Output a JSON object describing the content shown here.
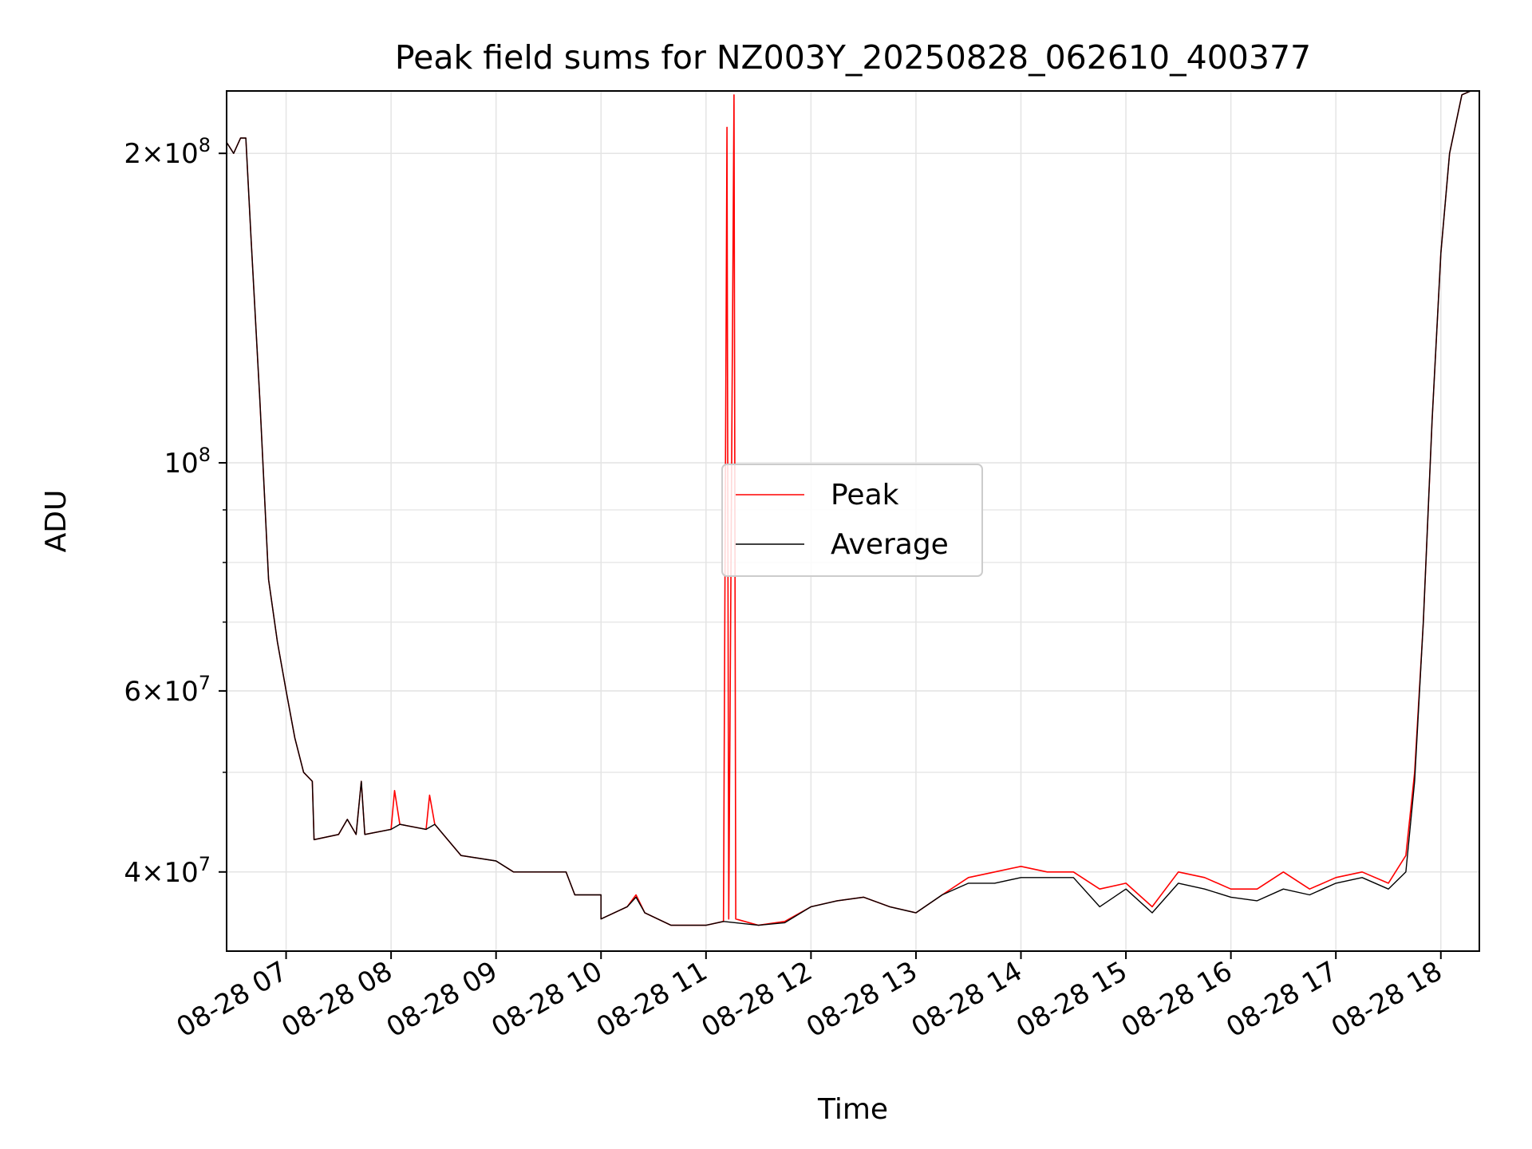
{
  "chart_data": {
    "type": "line",
    "title": "Peak field sums for NZ003Y_20250828_062610_400377",
    "xlabel": "Time",
    "ylabel": "ADU",
    "y_scale": "log",
    "xlim": [
      "2025-08-28 06:26",
      "2025-08-28 18:22"
    ],
    "ylim": [
      33500000,
      230000000
    ],
    "grid": true,
    "legend_placement": "center",
    "x_ticks": [
      "08-28 07",
      "08-28 08",
      "08-28 09",
      "08-28 10",
      "08-28 11",
      "08-28 12",
      "08-28 13",
      "08-28 14",
      "08-28 15",
      "08-28 16",
      "08-28 17",
      "08-28 18"
    ],
    "y_ticks": [
      {
        "value": 40000000,
        "mantissa": "4",
        "exponent": "7"
      },
      {
        "value": 60000000,
        "mantissa": "6",
        "exponent": "7"
      },
      {
        "value": 100000000,
        "mantissa": "",
        "exponent": "8"
      },
      {
        "value": 200000000,
        "mantissa": "2",
        "exponent": "8"
      }
    ],
    "times_unit": "time of day on 2025-08-28",
    "series": [
      {
        "name": "Peak",
        "color": "#ff0000",
        "points": [
          [
            "06:26",
            205000000
          ],
          [
            "06:30",
            200000000
          ],
          [
            "06:34",
            207000000
          ],
          [
            "06:37",
            207000000
          ],
          [
            "06:40",
            165000000
          ],
          [
            "06:45",
            115000000
          ],
          [
            "06:50",
            77000000
          ],
          [
            "06:55",
            67000000
          ],
          [
            "07:00",
            60000000
          ],
          [
            "07:05",
            54000000
          ],
          [
            "07:10",
            50000000
          ],
          [
            "07:15",
            49000000
          ],
          [
            "07:16",
            43000000
          ],
          [
            "07:30",
            43500000
          ],
          [
            "07:35",
            45000000
          ],
          [
            "07:40",
            43500000
          ],
          [
            "07:43",
            49000000
          ],
          [
            "07:45",
            43500000
          ],
          [
            "08:00",
            44000000
          ],
          [
            "08:02",
            48000000
          ],
          [
            "08:05",
            44500000
          ],
          [
            "08:20",
            44000000
          ],
          [
            "08:22",
            47500000
          ],
          [
            "08:25",
            44500000
          ],
          [
            "08:40",
            41500000
          ],
          [
            "09:00",
            41000000
          ],
          [
            "09:10",
            40000000
          ],
          [
            "09:40",
            40000000
          ],
          [
            "09:45",
            38000000
          ],
          [
            "10:00",
            38000000
          ],
          [
            "10:00",
            36000000
          ],
          [
            "10:15",
            37000000
          ],
          [
            "10:20",
            38000000
          ],
          [
            "10:25",
            36500000
          ],
          [
            "10:40",
            35500000
          ],
          [
            "11:00",
            35500000
          ],
          [
            "11:10",
            35800000
          ],
          [
            "11:12",
            212000000
          ],
          [
            "11:13",
            36000000
          ],
          [
            "11:16",
            228000000
          ],
          [
            "11:17",
            36000000
          ],
          [
            "11:30",
            35500000
          ],
          [
            "11:45",
            35800000
          ],
          [
            "12:00",
            37000000
          ],
          [
            "12:15",
            37500000
          ],
          [
            "12:30",
            37800000
          ],
          [
            "12:45",
            37000000
          ],
          [
            "13:00",
            36500000
          ],
          [
            "13:15",
            38000000
          ],
          [
            "13:30",
            39500000
          ],
          [
            "13:45",
            40000000
          ],
          [
            "14:00",
            40500000
          ],
          [
            "14:15",
            40000000
          ],
          [
            "14:30",
            40000000
          ],
          [
            "14:45",
            38500000
          ],
          [
            "15:00",
            39000000
          ],
          [
            "15:15",
            37000000
          ],
          [
            "15:30",
            40000000
          ],
          [
            "15:45",
            39500000
          ],
          [
            "16:00",
            38500000
          ],
          [
            "16:15",
            38500000
          ],
          [
            "16:30",
            40000000
          ],
          [
            "16:45",
            38500000
          ],
          [
            "17:00",
            39500000
          ],
          [
            "17:15",
            40000000
          ],
          [
            "17:30",
            39000000
          ],
          [
            "17:40",
            41500000
          ],
          [
            "17:45",
            50000000
          ],
          [
            "17:50",
            70000000
          ],
          [
            "17:55",
            110000000
          ],
          [
            "18:00",
            160000000
          ],
          [
            "18:05",
            200000000
          ],
          [
            "18:12",
            228000000
          ],
          [
            "18:22",
            232000000
          ]
        ]
      },
      {
        "name": "Average",
        "color": "#000000",
        "points": [
          [
            "06:26",
            205000000
          ],
          [
            "06:30",
            200000000
          ],
          [
            "06:34",
            207000000
          ],
          [
            "06:37",
            207000000
          ],
          [
            "06:40",
            165000000
          ],
          [
            "06:45",
            115000000
          ],
          [
            "06:50",
            77000000
          ],
          [
            "06:55",
            67000000
          ],
          [
            "07:00",
            60000000
          ],
          [
            "07:05",
            54000000
          ],
          [
            "07:10",
            50000000
          ],
          [
            "07:15",
            49000000
          ],
          [
            "07:16",
            43000000
          ],
          [
            "07:30",
            43500000
          ],
          [
            "07:35",
            45000000
          ],
          [
            "07:40",
            43500000
          ],
          [
            "07:43",
            49000000
          ],
          [
            "07:45",
            43500000
          ],
          [
            "08:00",
            44000000
          ],
          [
            "08:05",
            44500000
          ],
          [
            "08:20",
            44000000
          ],
          [
            "08:25",
            44500000
          ],
          [
            "08:40",
            41500000
          ],
          [
            "09:00",
            41000000
          ],
          [
            "09:10",
            40000000
          ],
          [
            "09:40",
            40000000
          ],
          [
            "09:45",
            38000000
          ],
          [
            "10:00",
            38000000
          ],
          [
            "10:00",
            36000000
          ],
          [
            "10:15",
            37000000
          ],
          [
            "10:20",
            37800000
          ],
          [
            "10:25",
            36500000
          ],
          [
            "10:40",
            35500000
          ],
          [
            "11:00",
            35500000
          ],
          [
            "11:10",
            35800000
          ],
          [
            "11:30",
            35500000
          ],
          [
            "11:45",
            35700000
          ],
          [
            "12:00",
            37000000
          ],
          [
            "12:15",
            37500000
          ],
          [
            "12:30",
            37800000
          ],
          [
            "12:45",
            37000000
          ],
          [
            "13:00",
            36500000
          ],
          [
            "13:15",
            38000000
          ],
          [
            "13:30",
            39000000
          ],
          [
            "13:45",
            39000000
          ],
          [
            "14:00",
            39500000
          ],
          [
            "14:15",
            39500000
          ],
          [
            "14:30",
            39500000
          ],
          [
            "14:45",
            37000000
          ],
          [
            "15:00",
            38500000
          ],
          [
            "15:15",
            36500000
          ],
          [
            "15:30",
            39000000
          ],
          [
            "15:45",
            38500000
          ],
          [
            "16:00",
            37800000
          ],
          [
            "16:15",
            37500000
          ],
          [
            "16:30",
            38500000
          ],
          [
            "16:45",
            38000000
          ],
          [
            "17:00",
            39000000
          ],
          [
            "17:15",
            39500000
          ],
          [
            "17:30",
            38500000
          ],
          [
            "17:40",
            40000000
          ],
          [
            "17:45",
            49000000
          ],
          [
            "17:50",
            70000000
          ],
          [
            "17:55",
            110000000
          ],
          [
            "18:00",
            160000000
          ],
          [
            "18:05",
            200000000
          ],
          [
            "18:12",
            228000000
          ],
          [
            "18:22",
            232000000
          ]
        ]
      }
    ]
  }
}
